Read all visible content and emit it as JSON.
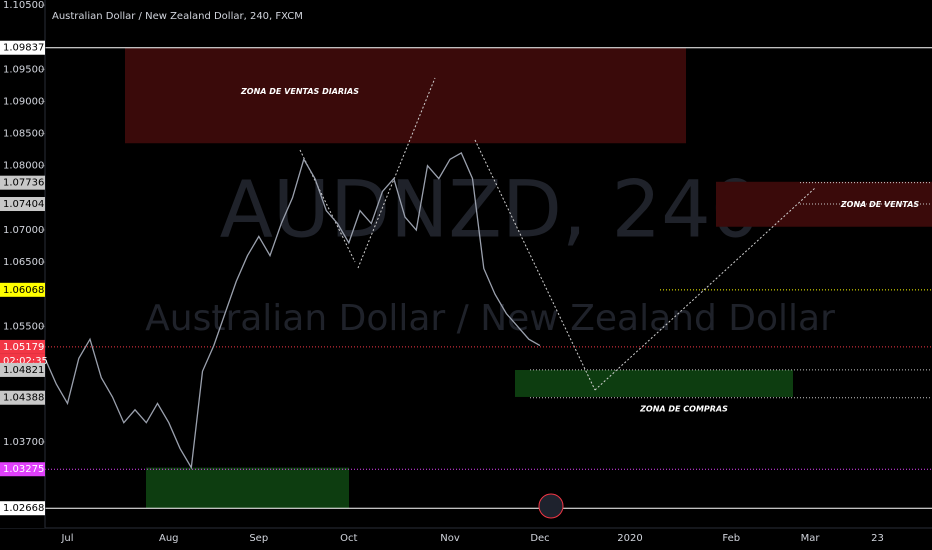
{
  "chart_data": {
    "type": "line",
    "title": "Australian Dollar / New Zealand Dollar, 240, FXCM",
    "watermark": [
      "AUDNZD, 240",
      "Australian Dollar / New Zealand Dollar"
    ],
    "categories": [
      null,
      null,
      "Jul",
      null,
      null,
      null,
      null,
      null,
      null,
      null,
      null,
      "Aug",
      null,
      null,
      null,
      null,
      null,
      null,
      null,
      "Sep",
      null,
      null,
      null,
      null,
      null,
      null,
      null,
      "Oct",
      null,
      null,
      null,
      null,
      null,
      null,
      null,
      null,
      "Nov",
      null,
      null,
      null,
      null,
      null,
      null,
      null,
      "Dec",
      null,
      null,
      null,
      null,
      null,
      null,
      null,
      "2020",
      null,
      null,
      null,
      null,
      null,
      null,
      null,
      null,
      "Feb",
      null,
      null,
      null,
      null,
      null,
      null,
      "Mar",
      null,
      null,
      null,
      null,
      null,
      "23",
      null,
      null,
      null,
      null,
      null
    ],
    "values": [
      1.05,
      1.046,
      1.043,
      1.05,
      1.053,
      1.047,
      1.044,
      1.04,
      1.042,
      1.04,
      1.043,
      1.04,
      1.036,
      1.033,
      1.048,
      1.052,
      1.057,
      1.062,
      1.066,
      1.069,
      1.066,
      1.071,
      1.075,
      1.081,
      1.078,
      1.073,
      1.071,
      1.068,
      1.073,
      1.071,
      1.076,
      1.078,
      1.072,
      1.07,
      1.08,
      1.078,
      1.081,
      1.082,
      1.078,
      1.064,
      1.06,
      1.057,
      1.055,
      1.053,
      1.052,
      null,
      null,
      null,
      null,
      null,
      null,
      null,
      null,
      null,
      null,
      null,
      null,
      null,
      null,
      null,
      null,
      null,
      null,
      null,
      null,
      null,
      null,
      null,
      null,
      null,
      null,
      null,
      null,
      null,
      null,
      null,
      null,
      null,
      null,
      null
    ],
    "color": "#9aa0ad",
    "ylim": [
      1.0236,
      1.1058
    ],
    "yticks": [
      {
        "value": 1.105,
        "label": "1.10500"
      },
      {
        "value": 1.095,
        "label": "1.09500"
      },
      {
        "value": 1.09,
        "label": "1.09000"
      },
      {
        "value": 1.085,
        "label": "1.08500"
      },
      {
        "value": 1.08,
        "label": "1.08000"
      },
      {
        "value": 1.07,
        "label": "1.07000"
      },
      {
        "value": 1.065,
        "label": "1.06500"
      },
      {
        "value": 1.055,
        "label": "1.05500"
      },
      {
        "value": 1.037,
        "label": "1.03700"
      }
    ],
    "levels": [
      {
        "value": 1.09837,
        "label": "1.09837",
        "color": "#ffffff",
        "style": "solid"
      },
      {
        "value": 1.07736,
        "label": "1.07736",
        "color": "#c8c8c8",
        "style": "dotted"
      },
      {
        "value": 1.07404,
        "label": "1.07404",
        "color": "#c8c8c8",
        "style": "dotted"
      },
      {
        "value": 1.06068,
        "label": "1.06068",
        "color": "#ffff00",
        "style": "dotted"
      },
      {
        "value": 1.05179,
        "label": "1.05179",
        "color": "#f23645",
        "style": "dotted"
      },
      {
        "value": 1.04821,
        "label": "1.04821",
        "color": "#c8c8c8",
        "style": "dotted"
      },
      {
        "value": 1.04388,
        "label": "1.04388",
        "color": "#c8c8c8",
        "style": "dotted"
      },
      {
        "value": 1.03275,
        "label": "1.03275",
        "color": "#e040fb",
        "style": "dotted"
      },
      {
        "value": 1.02668,
        "label": "1.02668",
        "color": "#ffffff",
        "style": "solid"
      }
    ],
    "countdown": "02:02:35",
    "zones": [
      {
        "label": "ZONA DE VENTAS DIARIAS",
        "range": [
          1.0835,
          1.09837
        ],
        "color": "#3a0a0a"
      },
      {
        "label": "ZONA DE VENTAS",
        "range": [
          1.0705,
          1.0775
        ],
        "color": "#3a0a0a"
      },
      {
        "label": "ZONA DE COMPRAS",
        "range": [
          1.044,
          1.0482
        ],
        "color": "#0d3d10"
      },
      {
        "range": [
          1.0267,
          1.033
        ],
        "color": "#0d3d10"
      }
    ]
  }
}
